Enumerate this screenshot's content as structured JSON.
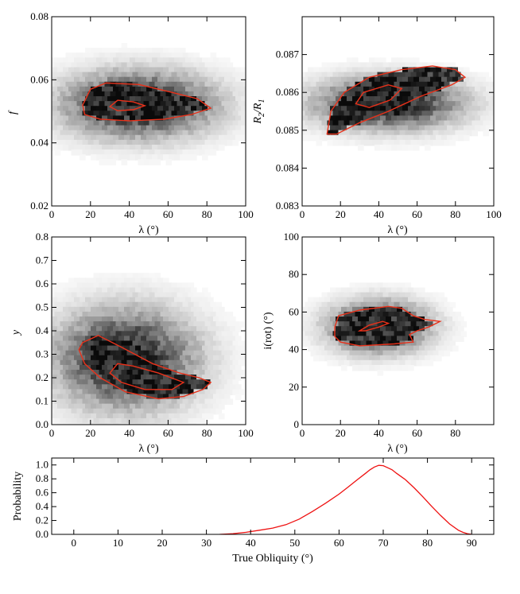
{
  "chart_data": [
    {
      "type": "heatmap",
      "id": "f_vs_lambda",
      "xlabel": "λ (°)",
      "ylabel": "f",
      "xlim": [
        0,
        100
      ],
      "ylim": [
        0.02,
        0.08
      ],
      "xticks": [
        0,
        20,
        40,
        60,
        80,
        100
      ],
      "xtick_labels": [
        "0",
        "20",
        "40",
        "60",
        "80",
        "100"
      ],
      "yticks": [
        0.02,
        0.04,
        0.06,
        0.08
      ],
      "ytick_labels": [
        "0.02",
        "0.04",
        "0.06",
        "0.08"
      ],
      "density_center": [
        45,
        0.052
      ],
      "density_spread": [
        26,
        0.007
      ],
      "contours": [
        {
          "level": "outer",
          "points": [
            [
              16,
              0.052
            ],
            [
              20,
              0.057
            ],
            [
              28,
              0.059
            ],
            [
              45,
              0.0585
            ],
            [
              62,
              0.056
            ],
            [
              75,
              0.054
            ],
            [
              82,
              0.051
            ],
            [
              72,
              0.049
            ],
            [
              58,
              0.0475
            ],
            [
              40,
              0.047
            ],
            [
              25,
              0.0475
            ],
            [
              17,
              0.049
            ]
          ]
        },
        {
          "level": "inner",
          "points": [
            [
              30,
              0.0515
            ],
            [
              34,
              0.0535
            ],
            [
              42,
              0.053
            ],
            [
              48,
              0.0518
            ],
            [
              42,
              0.0505
            ],
            [
              34,
              0.0502
            ]
          ]
        }
      ]
    },
    {
      "type": "heatmap",
      "id": "r2r1_vs_lambda",
      "xlabel": "λ (°)",
      "ylabel_main": "R",
      "ylabel_sub1": "2",
      "ylabel_div": "/R",
      "ylabel_sub2": "1",
      "xlim": [
        0,
        100
      ],
      "ylim": [
        0.083,
        0.088
      ],
      "xticks": [
        0,
        20,
        40,
        60,
        80,
        100
      ],
      "xtick_labels": [
        "0",
        "20",
        "40",
        "60",
        "80",
        "100"
      ],
      "yticks": [
        0.083,
        0.084,
        0.085,
        0.086,
        0.087
      ],
      "ytick_labels": [
        "0.083",
        "0.084",
        "0.085",
        "0.086",
        "0.087"
      ],
      "density_center": [
        45,
        0.0857
      ],
      "density_spread": [
        25,
        0.00045
      ],
      "contours": [
        {
          "level": "outer",
          "points": [
            [
              13,
              0.0849
            ],
            [
              15,
              0.0855
            ],
            [
              22,
              0.086
            ],
            [
              35,
              0.0864
            ],
            [
              52,
              0.0866
            ],
            [
              68,
              0.0867
            ],
            [
              80,
              0.0866
            ],
            [
              85,
              0.0864
            ],
            [
              78,
              0.0862
            ],
            [
              62,
              0.0859
            ],
            [
              45,
              0.0855
            ],
            [
              30,
              0.0852
            ],
            [
              18,
              0.0849
            ]
          ]
        },
        {
          "level": "inner",
          "points": [
            [
              28,
              0.0857
            ],
            [
              32,
              0.086
            ],
            [
              45,
              0.0862
            ],
            [
              52,
              0.0861
            ],
            [
              46,
              0.0858
            ],
            [
              35,
              0.0856
            ]
          ]
        }
      ]
    },
    {
      "type": "heatmap",
      "id": "y_vs_lambda",
      "xlabel": "λ (°)",
      "ylabel": "y",
      "xlim": [
        0,
        100
      ],
      "ylim": [
        0,
        0.8
      ],
      "xticks": [
        0,
        20,
        40,
        60,
        80,
        100
      ],
      "xtick_labels": [
        "0",
        "20",
        "40",
        "60",
        "80",
        "100"
      ],
      "yticks": [
        0,
        0.1,
        0.2,
        0.3,
        0.4,
        0.5,
        0.6,
        0.7,
        0.8
      ],
      "ytick_labels": [
        "0.0",
        "0.1",
        "0.2",
        "0.3",
        "0.4",
        "0.5",
        "0.6",
        "0.7",
        "0.8"
      ],
      "density_center": [
        38,
        0.28
      ],
      "density_spread": [
        24,
        0.14
      ],
      "contours": [
        {
          "level": "outer",
          "points": [
            [
              14,
              0.32
            ],
            [
              16,
              0.35
            ],
            [
              24,
              0.38
            ],
            [
              36,
              0.33
            ],
            [
              52,
              0.26
            ],
            [
              66,
              0.22
            ],
            [
              76,
              0.2
            ],
            [
              82,
              0.18
            ],
            [
              78,
              0.15
            ],
            [
              68,
              0.12
            ],
            [
              55,
              0.11
            ],
            [
              38,
              0.14
            ],
            [
              25,
              0.2
            ],
            [
              17,
              0.26
            ]
          ]
        },
        {
          "level": "inner",
          "points": [
            [
              30,
              0.22
            ],
            [
              34,
              0.26
            ],
            [
              42,
              0.25
            ],
            [
              55,
              0.22
            ],
            [
              68,
              0.18
            ],
            [
              62,
              0.15
            ],
            [
              48,
              0.15
            ],
            [
              36,
              0.18
            ]
          ]
        }
      ]
    },
    {
      "type": "heatmap",
      "id": "irot_vs_lambda",
      "xlabel": "λ (°)",
      "ylabel": "i(rot) (°)",
      "xlim": [
        0,
        100
      ],
      "ylim": [
        0,
        100
      ],
      "xticks": [
        0,
        20,
        40,
        60,
        80
      ],
      "xtick_labels": [
        "0",
        "20",
        "40",
        "60",
        "80"
      ],
      "yticks": [
        0,
        20,
        40,
        60,
        80,
        100
      ],
      "ytick_labels": [
        "0",
        "20",
        "40",
        "60",
        "80",
        "100"
      ],
      "density_center": [
        40,
        52
      ],
      "density_spread": [
        17,
        9
      ],
      "contours": [
        {
          "level": "outer",
          "points": [
            [
              17,
              52
            ],
            [
              19,
              58
            ],
            [
              30,
              61
            ],
            [
              45,
              63
            ],
            [
              52,
              62
            ],
            [
              58,
              58
            ],
            [
              64,
              56
            ],
            [
              72,
              55
            ],
            [
              66,
              52
            ],
            [
              60,
              50
            ],
            [
              56,
              48
            ],
            [
              58,
              44
            ],
            [
              48,
              43
            ],
            [
              30,
              42
            ],
            [
              20,
              44
            ],
            [
              17,
              47
            ]
          ]
        },
        {
          "level": "inner",
          "points": [
            [
              30,
              50
            ],
            [
              35,
              53
            ],
            [
              42,
              55
            ],
            [
              45,
              54
            ],
            [
              40,
              52
            ],
            [
              33,
              50
            ]
          ]
        }
      ]
    },
    {
      "type": "line",
      "id": "true_obliquity_probability",
      "xlabel": "True Obliquity (°)",
      "ylabel": "Probability",
      "xlim": [
        -5,
        95
      ],
      "ylim": [
        0,
        1.1
      ],
      "xticks": [
        0,
        10,
        20,
        30,
        40,
        50,
        60,
        70,
        80,
        90
      ],
      "xtick_labels": [
        "0",
        "10",
        "20",
        "30",
        "40",
        "50",
        "60",
        "70",
        "80",
        "90"
      ],
      "yticks": [
        0,
        0.2,
        0.4,
        0.6,
        0.8,
        1.0
      ],
      "ytick_labels": [
        "0.0",
        "0.2",
        "0.4",
        "0.6",
        "0.8",
        "1.0"
      ],
      "series": [
        {
          "name": "Probability",
          "color": "#ee1111",
          "x": [
            33,
            36,
            39,
            42,
            45,
            48,
            51,
            54,
            57,
            60,
            62,
            64,
            66,
            67,
            68,
            69,
            70,
            71,
            72,
            73,
            75,
            77,
            79,
            81,
            83,
            85,
            87,
            88,
            89,
            90
          ],
          "y": [
            0.0,
            0.01,
            0.03,
            0.06,
            0.09,
            0.14,
            0.22,
            0.33,
            0.45,
            0.58,
            0.68,
            0.78,
            0.88,
            0.93,
            0.97,
            0.995,
            0.99,
            0.96,
            0.93,
            0.88,
            0.79,
            0.67,
            0.54,
            0.4,
            0.27,
            0.15,
            0.06,
            0.03,
            0.01,
            0.0
          ]
        }
      ]
    }
  ],
  "colors": {
    "contour": "#e8311a",
    "line": "#ee1111"
  }
}
